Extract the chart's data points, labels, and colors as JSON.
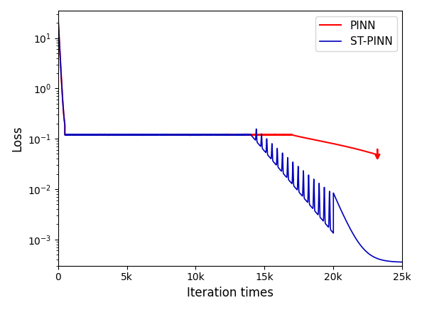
{
  "xlabel": "Iteration times",
  "ylabel": "Loss",
  "xlim": [
    0,
    25000
  ],
  "pinn_color": "#FF0000",
  "stpinn_color": "#0000BB",
  "legend_labels": [
    "PINN",
    "ST-PINN"
  ],
  "x_ticks": [
    0,
    5000,
    10000,
    15000,
    20000,
    25000
  ],
  "x_tick_labels": [
    "0",
    "5k",
    "10k",
    "15k",
    "20k",
    "25k"
  ],
  "ylim_bottom": 0.0003,
  "ylim_top": 35,
  "initial_value": 28.0,
  "plateau_value": 0.12,
  "pinn_drop_x": 500,
  "stpinn_spike_start": 14000,
  "stpinn_spike_end": 20000,
  "pinn_end_x": 23200,
  "pinn_end_y": 0.048,
  "stpinn_final_y": 0.00035
}
